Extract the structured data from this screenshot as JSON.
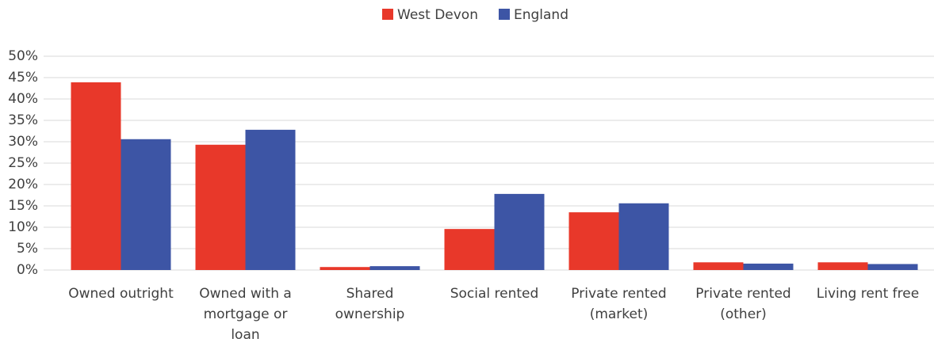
{
  "chart_data": {
    "type": "bar",
    "categories": [
      "Owned outright",
      "Owned with a mortgage or loan",
      "Shared ownership",
      "Social rented",
      "Private rented (market)",
      "Private rented (other)",
      "Living rent free"
    ],
    "series": [
      {
        "name": "West Devon",
        "color": "#e8382a",
        "values": [
          43.9,
          29.3,
          0.7,
          9.6,
          13.5,
          1.8,
          1.8
        ]
      },
      {
        "name": "England",
        "color": "#3d55a5",
        "values": [
          30.6,
          32.8,
          0.9,
          17.8,
          15.6,
          1.5,
          1.4
        ]
      }
    ],
    "ylim": [
      0,
      50
    ],
    "yticks": [
      {
        "value": 0,
        "label": "0%"
      },
      {
        "value": 5,
        "label": "5%"
      },
      {
        "value": 10,
        "label": "10%"
      },
      {
        "value": 15,
        "label": "15%"
      },
      {
        "value": 20,
        "label": "20%"
      },
      {
        "value": 25,
        "label": "25%"
      },
      {
        "value": 30,
        "label": "30%"
      },
      {
        "value": 35,
        "label": "35%"
      },
      {
        "value": 40,
        "label": "40%"
      },
      {
        "value": 45,
        "label": "45%"
      },
      {
        "value": 50,
        "label": "50%"
      }
    ],
    "grid": true,
    "legend": "top"
  }
}
